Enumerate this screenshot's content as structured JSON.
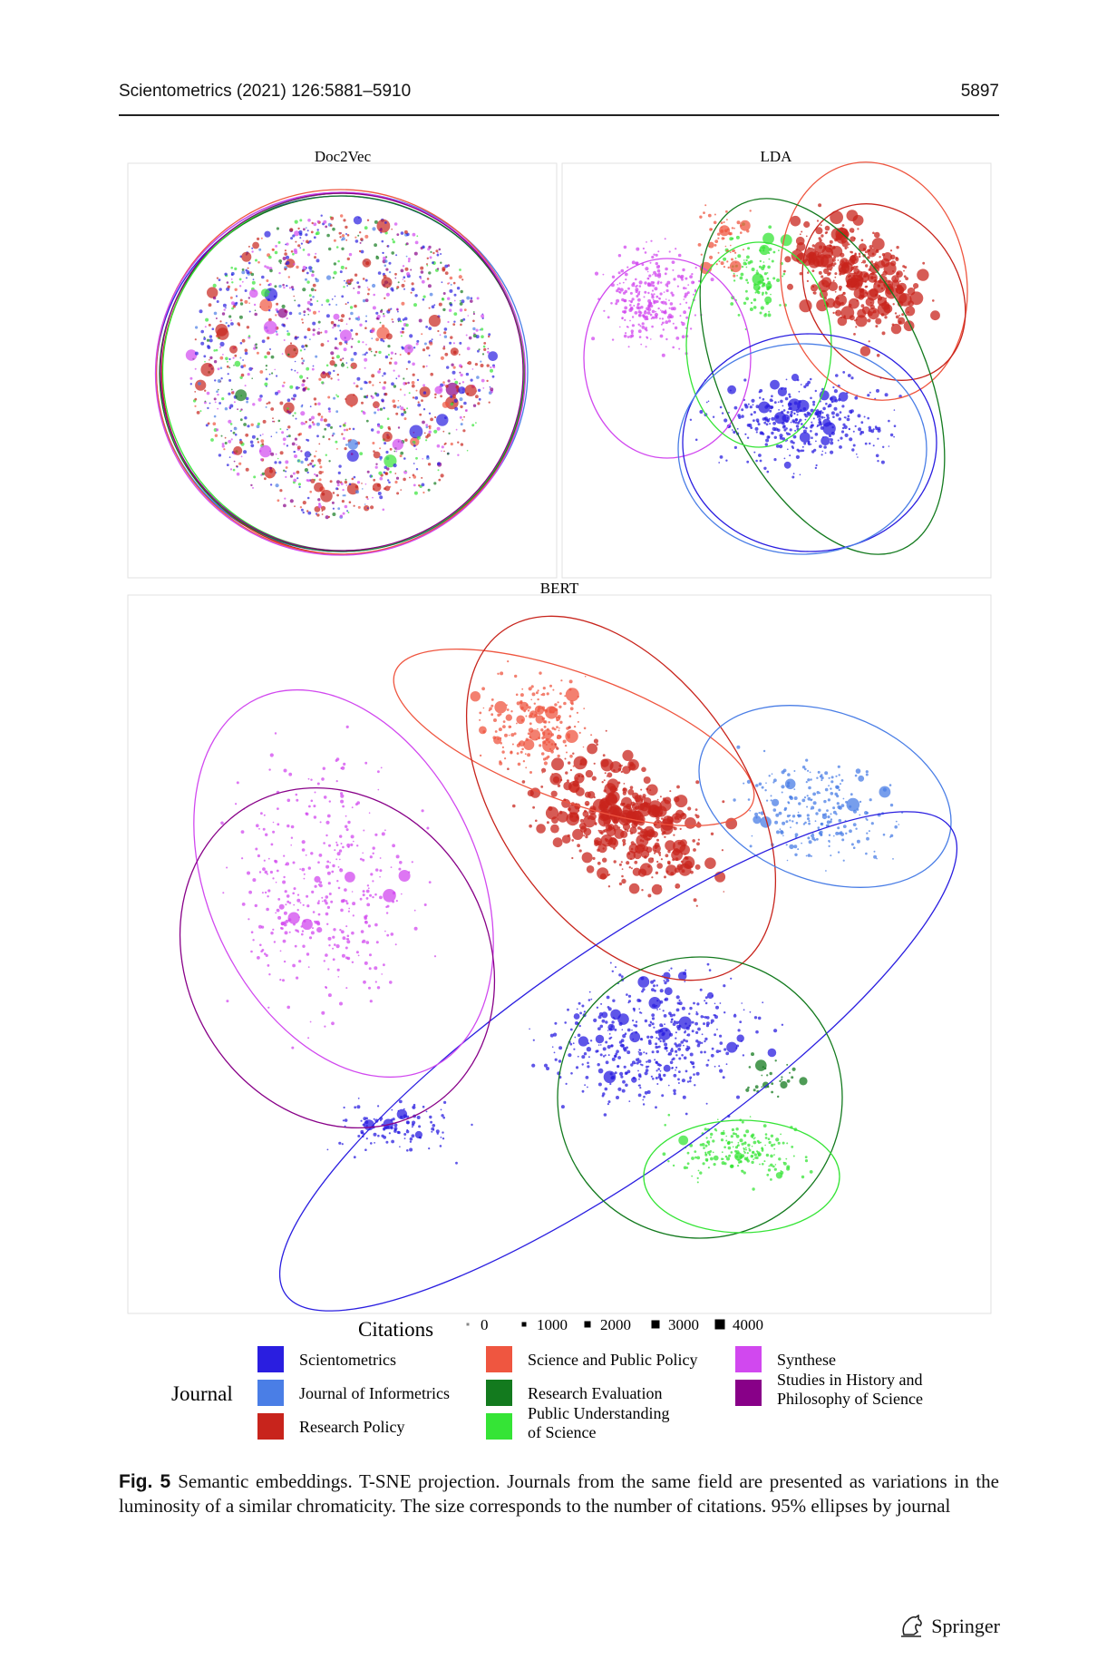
{
  "header": {
    "journal_ref": "Scientometrics (2021) 126:5881–5910",
    "page_number": "5897"
  },
  "figure": {
    "panels": [
      {
        "id": "doc2vec",
        "title": "Doc2Vec"
      },
      {
        "id": "lda",
        "title": "LDA"
      },
      {
        "id": "bert",
        "title": "BERT"
      }
    ],
    "size_legend": {
      "title": "Citations",
      "values": [
        "0",
        "1000",
        "2000",
        "3000",
        "4000"
      ]
    },
    "color_legend": {
      "title": "Journal",
      "entries": [
        {
          "label": "Scientometrics",
          "color": "#2a1ee0"
        },
        {
          "label": "Journal of Informetrics",
          "color": "#4a7ee6"
        },
        {
          "label": "Research Policy",
          "color": "#c8241c"
        },
        {
          "label": "Science and Public Policy",
          "color": "#ef5640"
        },
        {
          "label": "Research Evaluation",
          "color": "#137a1e"
        },
        {
          "label": "Public Understanding of Science",
          "color": "#35e436"
        },
        {
          "label": "Synthese",
          "color": "#d148ef"
        },
        {
          "label": "Studies in History and Philosophy of Science",
          "color": "#880088"
        }
      ]
    }
  },
  "caption": {
    "label": "Fig. 5",
    "text": "Semantic embeddings. T-SNE projection. Journals from the same field are presented as variations in the luminosity of a similar chromaticity. The size corresponds to the number of citations. 95% ellipses by journal"
  },
  "footer": {
    "publisher": "Springer",
    "logo_icon": "springer-horse-icon"
  }
}
